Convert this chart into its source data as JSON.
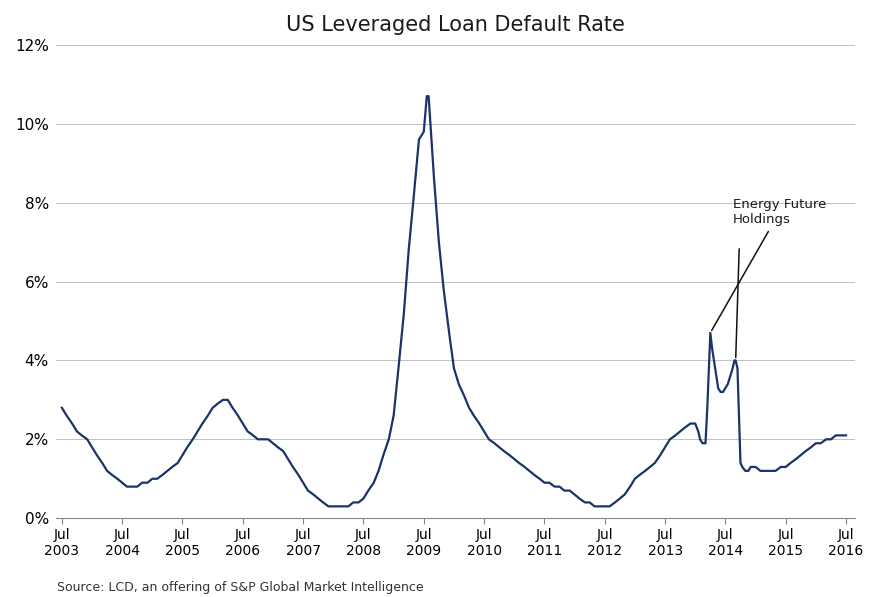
{
  "title": "US Leveraged Loan Default Rate",
  "source_text": "Source: LCD, an offering of S&P Global Market Intelligence",
  "line_color": "#1a3368",
  "background_color": "#ffffff",
  "grid_color": "#c0c0c0",
  "ylim": [
    0,
    0.12
  ],
  "yticks": [
    0,
    0.02,
    0.04,
    0.06,
    0.08,
    0.1,
    0.12
  ],
  "ytick_labels": [
    "0%",
    "2%",
    "4%",
    "6%",
    "8%",
    "10%",
    "12%"
  ],
  "xlim": [
    2003.4,
    2016.65
  ],
  "xtick_years": [
    2003,
    2004,
    2005,
    2006,
    2007,
    2008,
    2009,
    2010,
    2011,
    2012,
    2013,
    2014,
    2015,
    2016
  ],
  "data": [
    [
      2003.5,
      0.028
    ],
    [
      2003.58,
      0.026
    ],
    [
      2003.67,
      0.024
    ],
    [
      2003.75,
      0.022
    ],
    [
      2003.83,
      0.021
    ],
    [
      2003.92,
      0.02
    ],
    [
      2004.0,
      0.018
    ],
    [
      2004.08,
      0.016
    ],
    [
      2004.17,
      0.014
    ],
    [
      2004.25,
      0.012
    ],
    [
      2004.33,
      0.011
    ],
    [
      2004.42,
      0.01
    ],
    [
      2004.5,
      0.009
    ],
    [
      2004.58,
      0.008
    ],
    [
      2004.67,
      0.008
    ],
    [
      2004.75,
      0.008
    ],
    [
      2004.83,
      0.009
    ],
    [
      2004.92,
      0.009
    ],
    [
      2005.0,
      0.01
    ],
    [
      2005.08,
      0.01
    ],
    [
      2005.17,
      0.011
    ],
    [
      2005.25,
      0.012
    ],
    [
      2005.33,
      0.013
    ],
    [
      2005.42,
      0.014
    ],
    [
      2005.5,
      0.016
    ],
    [
      2005.58,
      0.018
    ],
    [
      2005.67,
      0.02
    ],
    [
      2005.75,
      0.022
    ],
    [
      2005.83,
      0.024
    ],
    [
      2005.92,
      0.026
    ],
    [
      2006.0,
      0.028
    ],
    [
      2006.08,
      0.029
    ],
    [
      2006.17,
      0.03
    ],
    [
      2006.25,
      0.03
    ],
    [
      2006.33,
      0.028
    ],
    [
      2006.42,
      0.026
    ],
    [
      2006.5,
      0.024
    ],
    [
      2006.58,
      0.022
    ],
    [
      2006.67,
      0.021
    ],
    [
      2006.75,
      0.02
    ],
    [
      2006.83,
      0.02
    ],
    [
      2006.92,
      0.02
    ],
    [
      2007.0,
      0.019
    ],
    [
      2007.08,
      0.018
    ],
    [
      2007.17,
      0.017
    ],
    [
      2007.25,
      0.015
    ],
    [
      2007.33,
      0.013
    ],
    [
      2007.42,
      0.011
    ],
    [
      2007.5,
      0.009
    ],
    [
      2007.58,
      0.007
    ],
    [
      2007.67,
      0.006
    ],
    [
      2007.75,
      0.005
    ],
    [
      2007.83,
      0.004
    ],
    [
      2007.92,
      0.003
    ],
    [
      2008.0,
      0.003
    ],
    [
      2008.08,
      0.003
    ],
    [
      2008.17,
      0.003
    ],
    [
      2008.25,
      0.003
    ],
    [
      2008.33,
      0.004
    ],
    [
      2008.42,
      0.004
    ],
    [
      2008.5,
      0.005
    ],
    [
      2008.58,
      0.007
    ],
    [
      2008.67,
      0.009
    ],
    [
      2008.75,
      0.012
    ],
    [
      2008.83,
      0.016
    ],
    [
      2008.92,
      0.02
    ],
    [
      2009.0,
      0.026
    ],
    [
      2009.08,
      0.038
    ],
    [
      2009.17,
      0.052
    ],
    [
      2009.25,
      0.068
    ],
    [
      2009.33,
      0.081
    ],
    [
      2009.42,
      0.096
    ],
    [
      2009.5,
      0.098
    ],
    [
      2009.55,
      0.107
    ],
    [
      2009.58,
      0.107
    ],
    [
      2009.67,
      0.086
    ],
    [
      2009.75,
      0.07
    ],
    [
      2009.83,
      0.058
    ],
    [
      2009.92,
      0.047
    ],
    [
      2010.0,
      0.038
    ],
    [
      2010.08,
      0.034
    ],
    [
      2010.17,
      0.031
    ],
    [
      2010.25,
      0.028
    ],
    [
      2010.33,
      0.026
    ],
    [
      2010.42,
      0.024
    ],
    [
      2010.5,
      0.022
    ],
    [
      2010.58,
      0.02
    ],
    [
      2010.67,
      0.019
    ],
    [
      2010.75,
      0.018
    ],
    [
      2010.83,
      0.017
    ],
    [
      2010.92,
      0.016
    ],
    [
      2011.0,
      0.015
    ],
    [
      2011.08,
      0.014
    ],
    [
      2011.17,
      0.013
    ],
    [
      2011.25,
      0.012
    ],
    [
      2011.33,
      0.011
    ],
    [
      2011.42,
      0.01
    ],
    [
      2011.5,
      0.009
    ],
    [
      2011.58,
      0.009
    ],
    [
      2011.67,
      0.008
    ],
    [
      2011.75,
      0.008
    ],
    [
      2011.83,
      0.007
    ],
    [
      2011.92,
      0.007
    ],
    [
      2012.0,
      0.006
    ],
    [
      2012.08,
      0.005
    ],
    [
      2012.17,
      0.004
    ],
    [
      2012.25,
      0.004
    ],
    [
      2012.33,
      0.003
    ],
    [
      2012.42,
      0.003
    ],
    [
      2012.5,
      0.003
    ],
    [
      2012.58,
      0.003
    ],
    [
      2012.67,
      0.004
    ],
    [
      2012.75,
      0.005
    ],
    [
      2012.83,
      0.006
    ],
    [
      2012.92,
      0.008
    ],
    [
      2013.0,
      0.01
    ],
    [
      2013.08,
      0.011
    ],
    [
      2013.17,
      0.012
    ],
    [
      2013.25,
      0.013
    ],
    [
      2013.33,
      0.014
    ],
    [
      2013.42,
      0.016
    ],
    [
      2013.5,
      0.018
    ],
    [
      2013.58,
      0.02
    ],
    [
      2013.67,
      0.021
    ],
    [
      2013.75,
      0.022
    ],
    [
      2013.83,
      0.023
    ],
    [
      2013.92,
      0.024
    ],
    [
      2014.0,
      0.024
    ],
    [
      2014.05,
      0.022
    ],
    [
      2014.08,
      0.02
    ],
    [
      2014.12,
      0.019
    ],
    [
      2014.17,
      0.019
    ],
    [
      2014.2,
      0.028
    ],
    [
      2014.25,
      0.047
    ],
    [
      2014.28,
      0.043
    ],
    [
      2014.33,
      0.038
    ],
    [
      2014.38,
      0.033
    ],
    [
      2014.42,
      0.032
    ],
    [
      2014.46,
      0.032
    ],
    [
      2014.5,
      0.033
    ],
    [
      2014.54,
      0.034
    ],
    [
      2014.58,
      0.036
    ],
    [
      2014.62,
      0.038
    ],
    [
      2014.65,
      0.04
    ],
    [
      2014.67,
      0.04
    ],
    [
      2014.7,
      0.038
    ],
    [
      2014.75,
      0.014
    ],
    [
      2014.78,
      0.013
    ],
    [
      2014.83,
      0.012
    ],
    [
      2014.88,
      0.012
    ],
    [
      2014.92,
      0.013
    ],
    [
      2015.0,
      0.013
    ],
    [
      2015.08,
      0.012
    ],
    [
      2015.17,
      0.012
    ],
    [
      2015.25,
      0.012
    ],
    [
      2015.33,
      0.012
    ],
    [
      2015.42,
      0.013
    ],
    [
      2015.5,
      0.013
    ],
    [
      2015.58,
      0.014
    ],
    [
      2015.67,
      0.015
    ],
    [
      2015.75,
      0.016
    ],
    [
      2015.83,
      0.017
    ],
    [
      2015.92,
      0.018
    ],
    [
      2016.0,
      0.019
    ],
    [
      2016.08,
      0.019
    ],
    [
      2016.17,
      0.02
    ],
    [
      2016.25,
      0.02
    ],
    [
      2016.33,
      0.021
    ],
    [
      2016.5,
      0.021
    ]
  ]
}
